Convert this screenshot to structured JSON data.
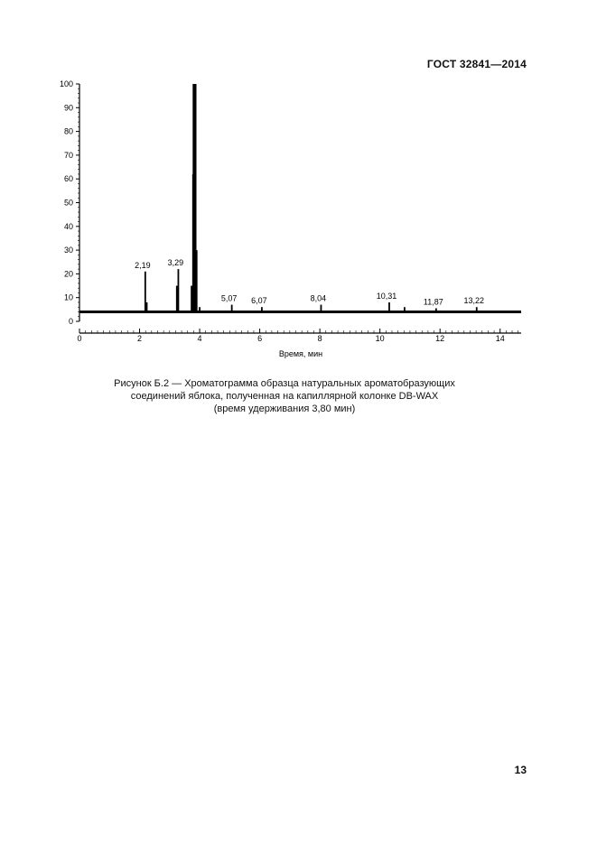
{
  "header": {
    "standard": "ГОСТ 32841—2014"
  },
  "page_number": "13",
  "caption": {
    "line1": "Рисунок Б.2 — Хроматограмма образца натуральных ароматобразующих",
    "line2": "соединений яблока, полученная на капиллярной колонке DB-WAX",
    "line3": "(время удерживания 3,80 мин)"
  },
  "chart_data": {
    "type": "line",
    "title": "",
    "xlabel": "Время, мин",
    "ylabel": "",
    "xlim": [
      0,
      14.7
    ],
    "ylim": [
      0,
      100
    ],
    "x_ticks": [
      0,
      2,
      4,
      6,
      8,
      10,
      12,
      14
    ],
    "y_ticks": [
      0,
      10,
      20,
      30,
      40,
      50,
      60,
      70,
      80,
      90,
      100
    ],
    "grid": false,
    "baseline": 4,
    "peaks": [
      {
        "x": 2.19,
        "y": 21,
        "label": "2,19"
      },
      {
        "x": 2.24,
        "y": 8,
        "label": ""
      },
      {
        "x": 3.24,
        "y": 15,
        "label": ""
      },
      {
        "x": 3.29,
        "y": 22,
        "label": "3,29"
      },
      {
        "x": 3.73,
        "y": 15,
        "label": ""
      },
      {
        "x": 3.78,
        "y": 62,
        "label": ""
      },
      {
        "x": 3.8,
        "y": 100,
        "label": ""
      },
      {
        "x": 3.83,
        "y": 100,
        "label": ""
      },
      {
        "x": 3.86,
        "y": 100,
        "label": ""
      },
      {
        "x": 3.9,
        "y": 30,
        "label": ""
      },
      {
        "x": 4.0,
        "y": 6,
        "label": ""
      },
      {
        "x": 5.07,
        "y": 7,
        "label": "5,07"
      },
      {
        "x": 6.07,
        "y": 6,
        "label": "6,07"
      },
      {
        "x": 8.04,
        "y": 7,
        "label": "8,04"
      },
      {
        "x": 10.31,
        "y": 8,
        "label": "10,31"
      },
      {
        "x": 10.82,
        "y": 6,
        "label": ""
      },
      {
        "x": 11.87,
        "y": 5.5,
        "label": "11,87"
      },
      {
        "x": 13.22,
        "y": 6,
        "label": "13,22"
      }
    ]
  }
}
